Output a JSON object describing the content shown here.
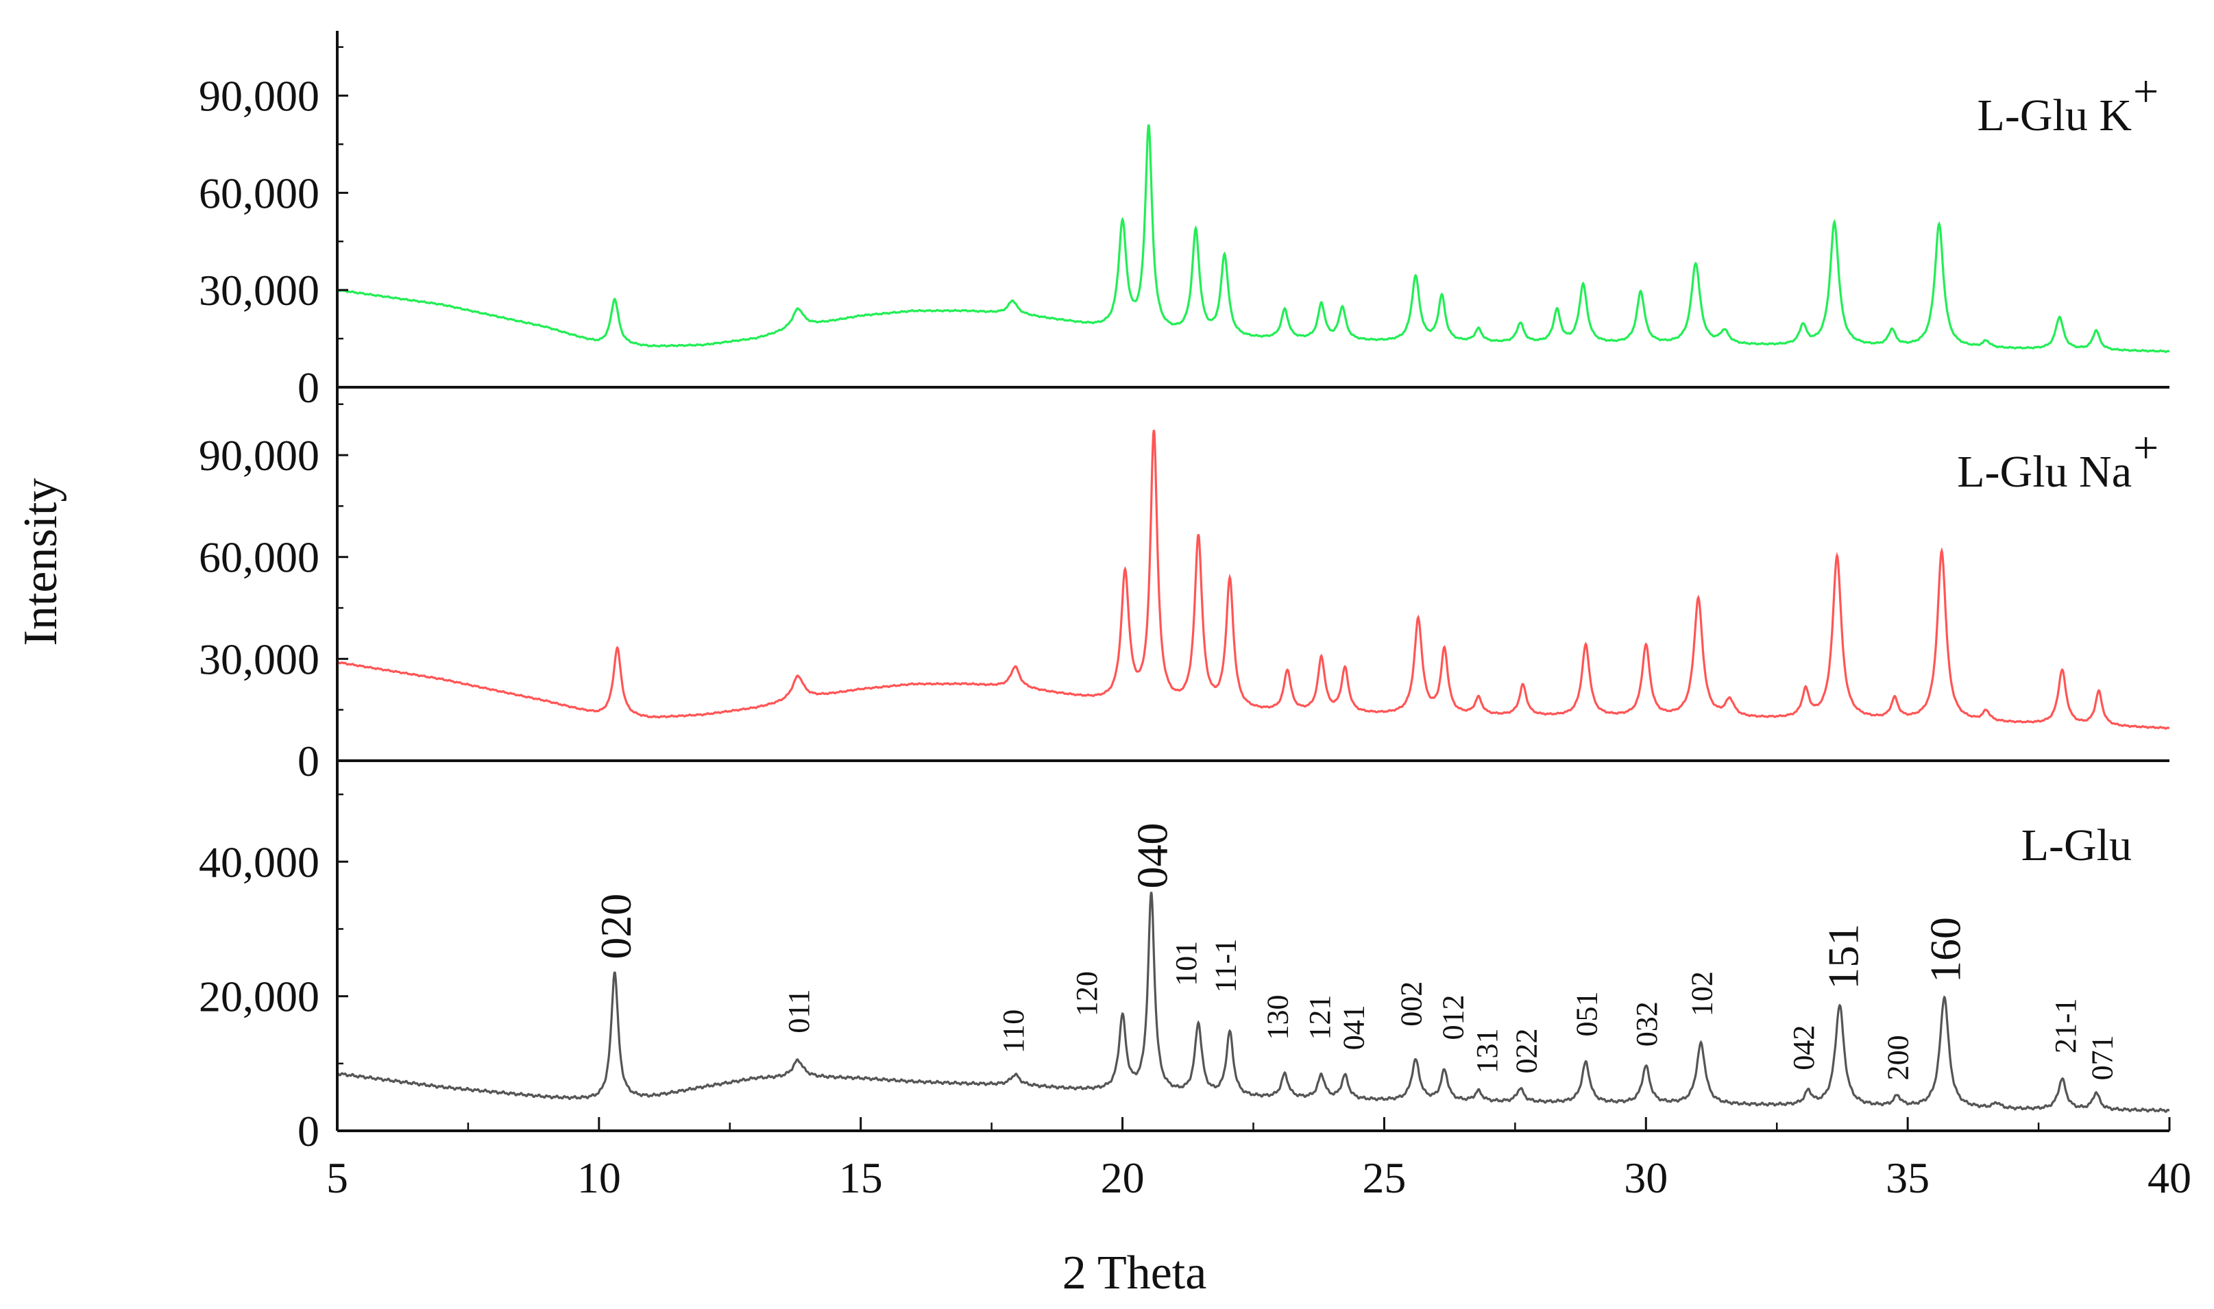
{
  "chart_data": {
    "type": "line",
    "xlabel": "2 Theta",
    "ylabel": "Intensity",
    "xlim": [
      5,
      40
    ],
    "xticks": [
      5,
      10,
      15,
      20,
      25,
      30,
      35,
      40
    ],
    "xtick_labels": [
      "5",
      "10",
      "15",
      "20",
      "25",
      "30",
      "35",
      "40"
    ],
    "grid": false,
    "panels": [
      {
        "label": "L-Glu K",
        "label_sup": "+",
        "color": "#22ee55",
        "ylim": [
          0,
          110000
        ],
        "yticks": [
          0,
          30000,
          60000,
          90000
        ],
        "ytick_labels": [
          "0",
          "30,000",
          "60,000",
          "90,000"
        ],
        "baseline": [
          [
            5,
            30000
          ],
          [
            7,
            25500
          ],
          [
            9,
            18500
          ],
          [
            10,
            13500
          ],
          [
            11,
            12500
          ],
          [
            12,
            13000
          ],
          [
            13,
            15000
          ],
          [
            14,
            19000
          ],
          [
            15,
            22000
          ],
          [
            16,
            23500
          ],
          [
            17,
            23500
          ],
          [
            18,
            22500
          ],
          [
            19,
            20000
          ],
          [
            20,
            17000
          ],
          [
            22,
            15000
          ],
          [
            25,
            14000
          ],
          [
            28,
            13500
          ],
          [
            31,
            13000
          ],
          [
            34,
            12500
          ],
          [
            37,
            11800
          ],
          [
            40,
            11000
          ]
        ],
        "peaks": [
          [
            10.3,
            14000,
            0.09
          ],
          [
            13.8,
            6000,
            0.13
          ],
          [
            17.9,
            4000,
            0.1
          ],
          [
            20.0,
            33000,
            0.09
          ],
          [
            20.5,
            63000,
            0.08
          ],
          [
            21.4,
            32000,
            0.085
          ],
          [
            21.95,
            25000,
            0.085
          ],
          [
            23.1,
            9000,
            0.08
          ],
          [
            23.8,
            11000,
            0.08
          ],
          [
            24.2,
            10000,
            0.08
          ],
          [
            25.6,
            20000,
            0.09
          ],
          [
            26.1,
            14000,
            0.08
          ],
          [
            26.8,
            4000,
            0.08
          ],
          [
            27.6,
            6000,
            0.08
          ],
          [
            28.3,
            10000,
            0.08
          ],
          [
            28.8,
            18000,
            0.09
          ],
          [
            29.9,
            16000,
            0.09
          ],
          [
            30.95,
            25000,
            0.1
          ],
          [
            31.5,
            4000,
            0.1
          ],
          [
            33.0,
            6000,
            0.08
          ],
          [
            33.6,
            38000,
            0.1
          ],
          [
            34.7,
            5000,
            0.08
          ],
          [
            35.6,
            38000,
            0.1
          ],
          [
            36.5,
            2000,
            0.08
          ],
          [
            37.9,
            10000,
            0.09
          ],
          [
            38.6,
            6000,
            0.08
          ]
        ]
      },
      {
        "label": "L-Glu Na",
        "label_sup": "+",
        "color": "#ff5555",
        "ylim": [
          0,
          110000
        ],
        "yticks": [
          0,
          30000,
          60000,
          90000
        ],
        "ytick_labels": [
          "0",
          "30,000",
          "60,000",
          "90,000"
        ],
        "baseline": [
          [
            5,
            29000
          ],
          [
            7,
            24000
          ],
          [
            9,
            17500
          ],
          [
            10,
            13500
          ],
          [
            11,
            12500
          ],
          [
            12,
            13500
          ],
          [
            13,
            15500
          ],
          [
            14,
            18500
          ],
          [
            15,
            21000
          ],
          [
            16,
            22500
          ],
          [
            17,
            22500
          ],
          [
            18,
            21500
          ],
          [
            19,
            19000
          ],
          [
            20,
            16500
          ],
          [
            22,
            14500
          ],
          [
            25,
            13500
          ],
          [
            28,
            13000
          ],
          [
            31,
            12500
          ],
          [
            34,
            12000
          ],
          [
            37,
            11000
          ],
          [
            40,
            9500
          ]
        ],
        "peaks": [
          [
            10.35,
            20000,
            0.09
          ],
          [
            13.8,
            7000,
            0.13
          ],
          [
            17.95,
            6000,
            0.1
          ],
          [
            20.05,
            38000,
            0.09
          ],
          [
            20.6,
            80000,
            0.08
          ],
          [
            21.45,
            50000,
            0.085
          ],
          [
            22.05,
            38000,
            0.085
          ],
          [
            23.15,
            12000,
            0.08
          ],
          [
            23.8,
            16000,
            0.08
          ],
          [
            24.25,
            13000,
            0.08
          ],
          [
            25.65,
            28000,
            0.09
          ],
          [
            26.15,
            19000,
            0.08
          ],
          [
            26.8,
            5000,
            0.08
          ],
          [
            27.65,
            9000,
            0.08
          ],
          [
            28.85,
            21000,
            0.09
          ],
          [
            30.0,
            21000,
            0.09
          ],
          [
            31.0,
            35000,
            0.1
          ],
          [
            31.6,
            5000,
            0.1
          ],
          [
            33.05,
            8000,
            0.08
          ],
          [
            33.65,
            48000,
            0.1
          ],
          [
            34.75,
            6000,
            0.08
          ],
          [
            35.65,
            50000,
            0.1
          ],
          [
            36.5,
            3000,
            0.08
          ],
          [
            37.95,
            16000,
            0.09
          ],
          [
            38.65,
            10000,
            0.08
          ]
        ]
      },
      {
        "label": "L-Glu",
        "label_sup": "",
        "color": "#555555",
        "ylim": [
          0,
          55000
        ],
        "yticks": [
          0,
          20000,
          40000
        ],
        "ytick_labels": [
          "0",
          "20,000",
          "40,000"
        ],
        "baseline": [
          [
            5,
            8500
          ],
          [
            7,
            6500
          ],
          [
            9,
            5000
          ],
          [
            10,
            4500
          ],
          [
            11,
            5000
          ],
          [
            12,
            6500
          ],
          [
            13,
            7800
          ],
          [
            14,
            8000
          ],
          [
            15,
            7800
          ],
          [
            16,
            7300
          ],
          [
            17,
            7000
          ],
          [
            18,
            6800
          ],
          [
            19,
            6200
          ],
          [
            20,
            5800
          ],
          [
            22,
            5000
          ],
          [
            25,
            4500
          ],
          [
            28,
            4200
          ],
          [
            31,
            3900
          ],
          [
            34,
            3600
          ],
          [
            37,
            3200
          ],
          [
            40,
            3000
          ]
        ],
        "peaks": [
          [
            10.3,
            19000,
            0.08
          ],
          [
            13.8,
            2500,
            0.12
          ],
          [
            17.95,
            1500,
            0.1
          ],
          [
            20.0,
            11000,
            0.08
          ],
          [
            20.55,
            29500,
            0.075
          ],
          [
            21.45,
            10500,
            0.08
          ],
          [
            22.05,
            9500,
            0.08
          ],
          [
            23.1,
            3500,
            0.08
          ],
          [
            23.8,
            3500,
            0.08
          ],
          [
            24.25,
            3500,
            0.08
          ],
          [
            25.6,
            6000,
            0.09
          ],
          [
            26.15,
            4500,
            0.08
          ],
          [
            26.8,
            1500,
            0.08
          ],
          [
            27.6,
            2000,
            0.08
          ],
          [
            28.85,
            6000,
            0.09
          ],
          [
            30.0,
            5500,
            0.09
          ],
          [
            31.05,
            9000,
            0.1
          ],
          [
            33.1,
            2000,
            0.08
          ],
          [
            33.7,
            15000,
            0.1
          ],
          [
            34.8,
            1500,
            0.08
          ],
          [
            35.7,
            16500,
            0.1
          ],
          [
            36.7,
            800,
            0.08
          ],
          [
            37.95,
            4500,
            0.09
          ],
          [
            38.6,
            2500,
            0.08
          ]
        ],
        "annotations": [
          {
            "text": "020",
            "x": 10.3,
            "y": 25500,
            "size": "large"
          },
          {
            "text": "011",
            "x": 13.8,
            "y": 14500,
            "size": "small"
          },
          {
            "text": "110",
            "x": 17.9,
            "y": 11500,
            "size": "small"
          },
          {
            "text": "120",
            "x": 19.3,
            "y": 17000,
            "size": "small"
          },
          {
            "text": "040",
            "x": 20.55,
            "y": 36000,
            "size": "large"
          },
          {
            "text": "101",
            "x": 21.2,
            "y": 21500,
            "size": "small"
          },
          {
            "text": "11-1",
            "x": 21.95,
            "y": 20500,
            "size": "small"
          },
          {
            "text": "130",
            "x": 22.95,
            "y": 13500,
            "size": "small"
          },
          {
            "text": "121",
            "x": 23.75,
            "y": 13500,
            "size": "small"
          },
          {
            "text": "041",
            "x": 24.4,
            "y": 12000,
            "size": "small"
          },
          {
            "text": "002",
            "x": 25.5,
            "y": 15500,
            "size": "small"
          },
          {
            "text": "012",
            "x": 26.3,
            "y": 13500,
            "size": "small"
          },
          {
            "text": "131",
            "x": 26.95,
            "y": 8500,
            "size": "small"
          },
          {
            "text": "022",
            "x": 27.7,
            "y": 8500,
            "size": "small"
          },
          {
            "text": "051",
            "x": 28.85,
            "y": 14000,
            "size": "small"
          },
          {
            "text": "032",
            "x": 30.0,
            "y": 12500,
            "size": "small"
          },
          {
            "text": "102",
            "x": 31.05,
            "y": 17000,
            "size": "small"
          },
          {
            "text": "042",
            "x": 33.0,
            "y": 9000,
            "size": "small"
          },
          {
            "text": "151",
            "x": 33.75,
            "y": 21000,
            "size": "large"
          },
          {
            "text": "200",
            "x": 34.8,
            "y": 7500,
            "size": "small"
          },
          {
            "text": "160",
            "x": 35.7,
            "y": 22000,
            "size": "large"
          },
          {
            "text": "21-1",
            "x": 38.0,
            "y": 11500,
            "size": "small"
          },
          {
            "text": "071",
            "x": 38.7,
            "y": 7500,
            "size": "small"
          }
        ]
      }
    ]
  }
}
